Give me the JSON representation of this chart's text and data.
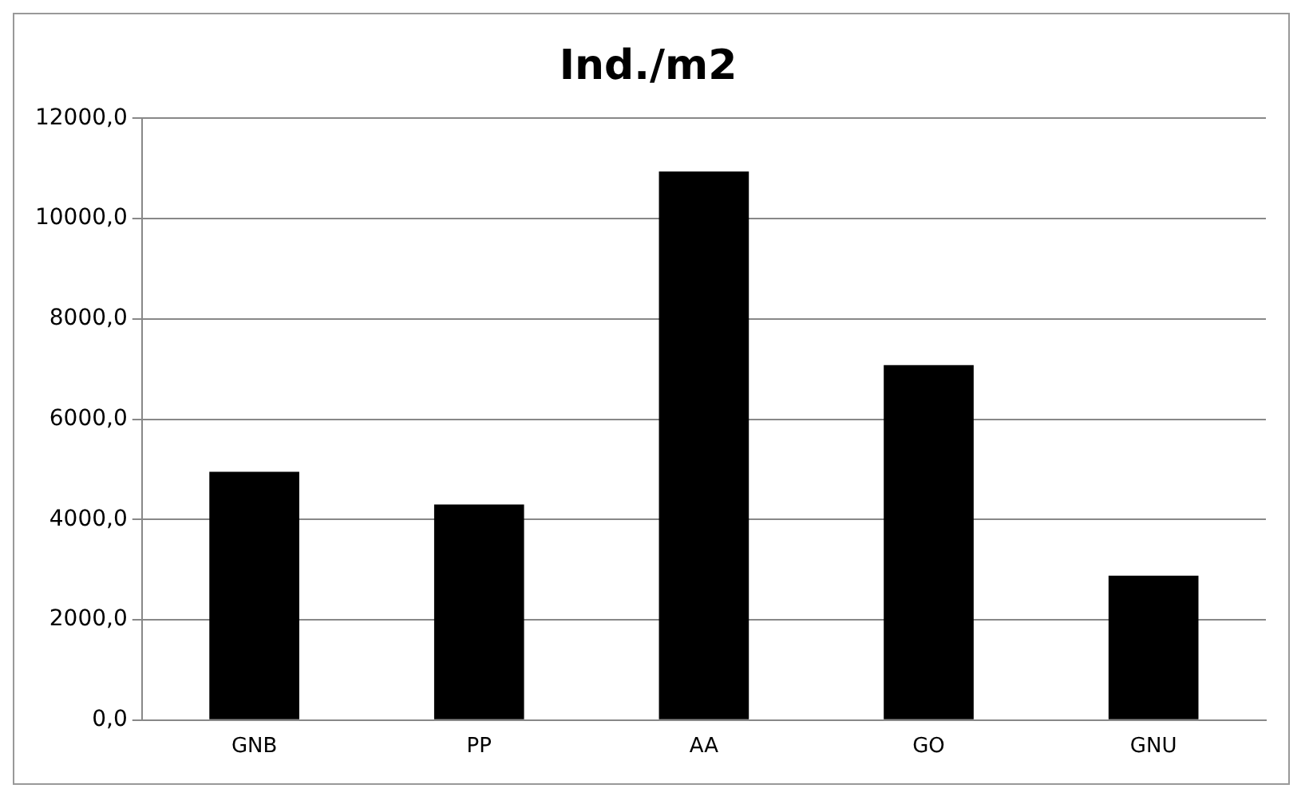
{
  "chart_data": {
    "type": "bar",
    "title": "Ind./m2",
    "categories": [
      "GNB",
      "PP",
      "AA",
      "GO",
      "GNU"
    ],
    "values": [
      4950,
      4300,
      10940,
      7080,
      2880
    ],
    "color": "#000000",
    "ylim": [
      0,
      12000
    ],
    "yticks": [
      {
        "value": 0,
        "label": "0,0"
      },
      {
        "value": 2000,
        "label": "2000,0"
      },
      {
        "value": 4000,
        "label": "4000,0"
      },
      {
        "value": 6000,
        "label": "6000,0"
      },
      {
        "value": 8000,
        "label": "8000,0"
      },
      {
        "value": 10000,
        "label": "10000,0"
      },
      {
        "value": 12000,
        "label": "12000,0"
      }
    ],
    "grid": "y",
    "legend": false
  }
}
